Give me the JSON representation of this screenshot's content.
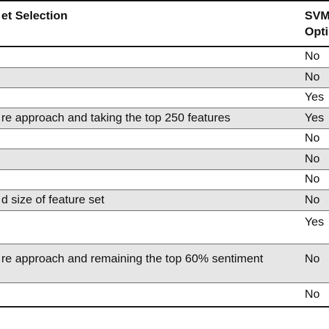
{
  "table": {
    "header": {
      "col1": "et Selection",
      "col2_line1": "SVM",
      "col2_line2": "Opti"
    },
    "rows": [
      {
        "desc": "",
        "svm": "No"
      },
      {
        "desc": "",
        "svm": "No"
      },
      {
        "desc": "",
        "svm": "Yes"
      },
      {
        "desc": "re approach and taking the top 250 features",
        "svm": "Yes"
      },
      {
        "desc": "",
        "svm": "No"
      },
      {
        "desc": "",
        "svm": "No"
      },
      {
        "desc": "",
        "svm": "No"
      },
      {
        "desc": "d size of feature set",
        "svm": "No"
      },
      {
        "desc": "",
        "svm": "Yes"
      },
      {
        "desc": "re approach and remaining the top 60% sentiment",
        "svm": "No"
      },
      {
        "desc": "",
        "svm": "No"
      }
    ]
  }
}
